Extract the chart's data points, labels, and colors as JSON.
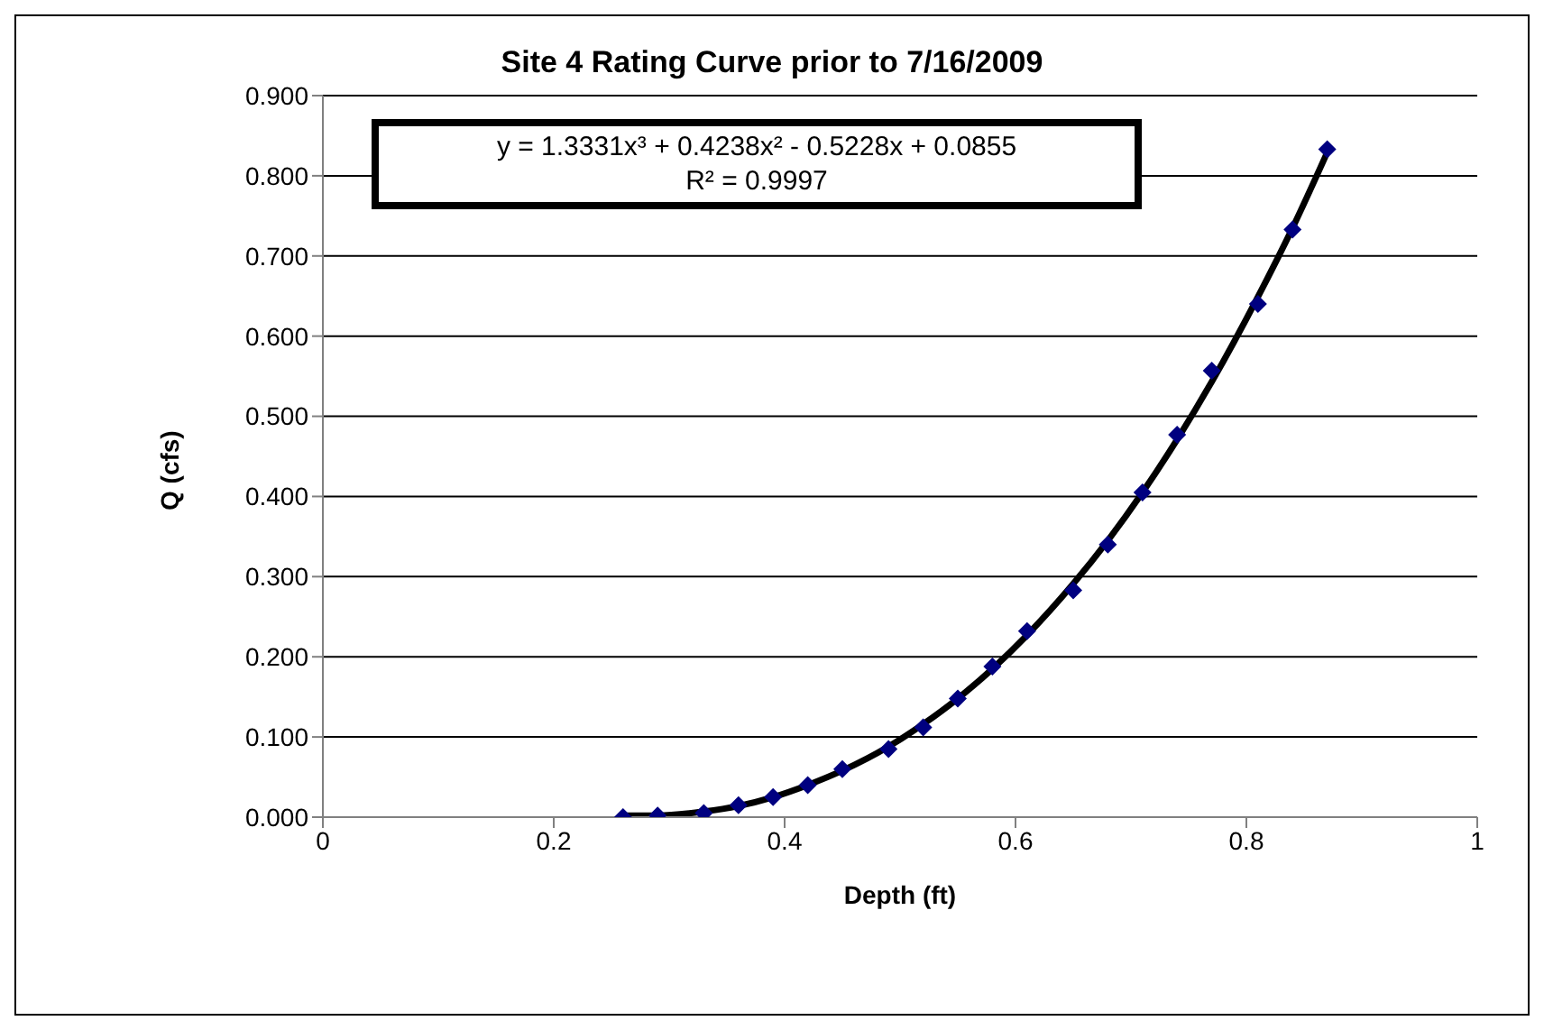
{
  "chart_data": {
    "type": "scatter",
    "title": "Site 4 Rating Curve prior to 7/16/2009",
    "xlabel": "Depth (ft)",
    "ylabel": "Q (cfs)",
    "annotations": [
      "y = 1.3331x³ + 0.4238x² - 0.5228x + 0.0855",
      "R² = 0.9997"
    ],
    "x": [
      0.26,
      0.29,
      0.33,
      0.36,
      0.39,
      0.42,
      0.45,
      0.49,
      0.52,
      0.55,
      0.58,
      0.61,
      0.65,
      0.68,
      0.71,
      0.74,
      0.77,
      0.81,
      0.84,
      0.87
    ],
    "series": [
      {
        "color": "#000080",
        "marker": "diamond",
        "values": [
          0.0,
          0.002,
          0.005,
          0.015,
          0.025,
          0.04,
          0.06,
          0.085,
          0.112,
          0.148,
          0.188,
          0.232,
          0.283,
          0.34,
          0.405,
          0.477,
          0.557,
          0.64,
          0.733,
          0.833
        ]
      },
      {
        "type": "line",
        "color": "#000000",
        "marker": "none",
        "values": [
          0.002,
          0.002,
          0.007,
          0.014,
          0.025,
          0.04,
          0.058,
          0.088,
          0.116,
          0.148,
          0.185,
          0.227,
          0.291,
          0.345,
          0.405,
          0.471,
          0.543,
          0.649,
          0.735,
          0.829
        ]
      }
    ],
    "xlim": [
      0,
      1
    ],
    "xticks": [
      0,
      0.2,
      0.4,
      0.6,
      0.8,
      1
    ],
    "ylim": [
      0,
      0.9
    ],
    "yticks": [
      {
        "value": 0,
        "label": "0.000"
      },
      {
        "value": 0.1,
        "label": "0.100"
      },
      {
        "value": 0.2,
        "label": "0.200"
      },
      {
        "value": 0.3,
        "label": "0.300"
      },
      {
        "value": 0.4,
        "label": "0.400"
      },
      {
        "value": 0.5,
        "label": "0.500"
      },
      {
        "value": 0.6,
        "label": "0.600"
      },
      {
        "value": 0.7,
        "label": "0.700"
      },
      {
        "value": 0.8,
        "label": "0.800"
      },
      {
        "value": 0.9,
        "label": "0.900"
      }
    ],
    "grid": "y",
    "legend": false
  }
}
